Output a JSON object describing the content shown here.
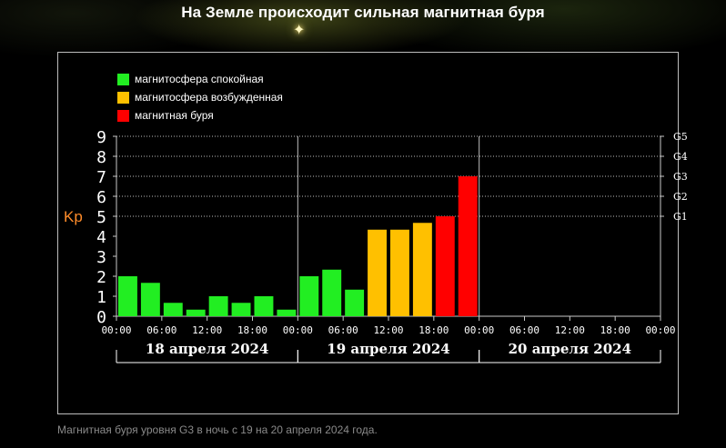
{
  "headline": "На Земле происходит сильная магнитная буря",
  "caption": "Магнитная буря уровня G3 в ночь с 19 на 20 апреля 2024 года.",
  "colors": {
    "quiet": "#22ee22",
    "disturbed": "#ffc000",
    "storm": "#ff0000",
    "kp_label": "#ff8c2a"
  },
  "legend": [
    {
      "label": "магнитосфера спокойная",
      "color": "#22ee22"
    },
    {
      "label": "магнитосфера возбужденная",
      "color": "#ffc000"
    },
    {
      "label": "магнитная буря",
      "color": "#ff0000"
    }
  ],
  "chart_data": {
    "type": "bar",
    "ylabel": "Kp",
    "ylim": [
      0,
      9
    ],
    "yticks": [
      0,
      1,
      2,
      3,
      4,
      5,
      6,
      7,
      8,
      9
    ],
    "grid": "dotted horizontal lines at 5, 6, 7, 8, 9",
    "g_scale": [
      {
        "label": "G1",
        "kp": 5
      },
      {
        "label": "G2",
        "kp": 6
      },
      {
        "label": "G3",
        "kp": 7
      },
      {
        "label": "G4",
        "kp": 8
      },
      {
        "label": "G5",
        "kp": 9
      }
    ],
    "days": [
      "18 апреля 2024",
      "19 апреля 2024",
      "20 апреля 2024"
    ],
    "x_tick_labels": [
      "00:00",
      "06:00",
      "12:00",
      "18:00",
      "00:00",
      "06:00",
      "12:00",
      "18:00",
      "00:00",
      "06:00",
      "12:00",
      "18:00",
      "00:00"
    ],
    "bars_per_day": 8,
    "bars": [
      {
        "day": "18 апреля 2024",
        "start": "00:00",
        "value": 2.0,
        "level": "quiet"
      },
      {
        "day": "18 апреля 2024",
        "start": "03:00",
        "value": 1.67,
        "level": "quiet"
      },
      {
        "day": "18 апреля 2024",
        "start": "06:00",
        "value": 0.67,
        "level": "quiet"
      },
      {
        "day": "18 апреля 2024",
        "start": "09:00",
        "value": 0.33,
        "level": "quiet"
      },
      {
        "day": "18 апреля 2024",
        "start": "12:00",
        "value": 1.0,
        "level": "quiet"
      },
      {
        "day": "18 апреля 2024",
        "start": "15:00",
        "value": 0.67,
        "level": "quiet"
      },
      {
        "day": "18 апреля 2024",
        "start": "18:00",
        "value": 1.0,
        "level": "quiet"
      },
      {
        "day": "18 апреля 2024",
        "start": "21:00",
        "value": 0.33,
        "level": "quiet"
      },
      {
        "day": "19 апреля 2024",
        "start": "00:00",
        "value": 2.0,
        "level": "quiet"
      },
      {
        "day": "19 апреля 2024",
        "start": "03:00",
        "value": 2.33,
        "level": "quiet"
      },
      {
        "day": "19 апреля 2024",
        "start": "06:00",
        "value": 1.33,
        "level": "quiet"
      },
      {
        "day": "19 апреля 2024",
        "start": "09:00",
        "value": 4.33,
        "level": "disturbed"
      },
      {
        "day": "19 апреля 2024",
        "start": "12:00",
        "value": 4.33,
        "level": "disturbed"
      },
      {
        "day": "19 апреля 2024",
        "start": "15:00",
        "value": 4.67,
        "level": "disturbed"
      },
      {
        "day": "19 апреля 2024",
        "start": "18:00",
        "value": 5.0,
        "level": "storm"
      },
      {
        "day": "19 апреля 2024",
        "start": "21:00",
        "value": 7.0,
        "level": "storm"
      }
    ]
  }
}
